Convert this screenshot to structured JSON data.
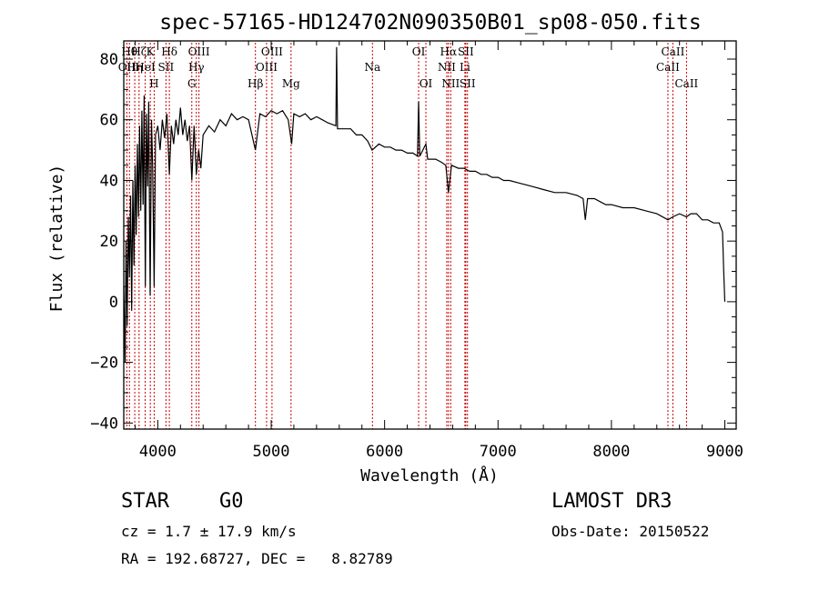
{
  "chart_data": {
    "type": "line",
    "title": "spec-57165-HD124702N090350B01_sp08-050.fits",
    "xlabel": "Wavelength (Å)",
    "ylabel": "Flux (relative)",
    "xlim": [
      3700,
      9100
    ],
    "ylim": [
      -42,
      86
    ],
    "xticks": [
      4000,
      5000,
      6000,
      7000,
      8000,
      9000
    ],
    "yticks": [
      -40,
      -20,
      0,
      20,
      40,
      60,
      80
    ],
    "xtick_labels": [
      "4000",
      "5000",
      "6000",
      "7000",
      "8000",
      "9000"
    ],
    "ytick_labels": [
      "−40",
      "−20",
      "0",
      "20",
      "40",
      "60",
      "80"
    ],
    "series": [
      {
        "name": "spectrum",
        "points": [
          [
            3700,
            5
          ],
          [
            3712,
            -20
          ],
          [
            3720,
            20
          ],
          [
            3730,
            -8
          ],
          [
            3740,
            28
          ],
          [
            3750,
            8
          ],
          [
            3760,
            35
          ],
          [
            3770,
            -3
          ],
          [
            3780,
            40
          ],
          [
            3790,
            12
          ],
          [
            3800,
            45
          ],
          [
            3810,
            22
          ],
          [
            3820,
            52
          ],
          [
            3830,
            28
          ],
          [
            3840,
            58
          ],
          [
            3850,
            30
          ],
          [
            3860,
            63
          ],
          [
            3870,
            32
          ],
          [
            3880,
            68
          ],
          [
            3890,
            5
          ],
          [
            3900,
            62
          ],
          [
            3910,
            38
          ],
          [
            3920,
            66
          ],
          [
            3933,
            2
          ],
          [
            3945,
            60
          ],
          [
            3955,
            44
          ],
          [
            3968,
            5
          ],
          [
            3980,
            55
          ],
          [
            4000,
            58
          ],
          [
            4020,
            50
          ],
          [
            4040,
            60
          ],
          [
            4060,
            54
          ],
          [
            4080,
            62
          ],
          [
            4102,
            42
          ],
          [
            4120,
            58
          ],
          [
            4140,
            52
          ],
          [
            4160,
            60
          ],
          [
            4180,
            55
          ],
          [
            4200,
            64
          ],
          [
            4220,
            55
          ],
          [
            4240,
            60
          ],
          [
            4260,
            53
          ],
          [
            4280,
            58
          ],
          [
            4300,
            40
          ],
          [
            4320,
            58
          ],
          [
            4340,
            42
          ],
          [
            4360,
            50
          ],
          [
            4380,
            44
          ],
          [
            4400,
            55
          ],
          [
            4450,
            58
          ],
          [
            4500,
            56
          ],
          [
            4550,
            60
          ],
          [
            4600,
            58
          ],
          [
            4650,
            62
          ],
          [
            4700,
            60
          ],
          [
            4750,
            61
          ],
          [
            4800,
            60
          ],
          [
            4861,
            50
          ],
          [
            4900,
            62
          ],
          [
            4950,
            61
          ],
          [
            5000,
            63
          ],
          [
            5050,
            62
          ],
          [
            5100,
            63
          ],
          [
            5150,
            60
          ],
          [
            5180,
            52
          ],
          [
            5200,
            62
          ],
          [
            5250,
            61
          ],
          [
            5300,
            62
          ],
          [
            5350,
            60
          ],
          [
            5400,
            61
          ],
          [
            5450,
            60
          ],
          [
            5500,
            59
          ],
          [
            5570,
            58
          ],
          [
            5577,
            84
          ],
          [
            5585,
            57
          ],
          [
            5650,
            57
          ],
          [
            5700,
            57
          ],
          [
            5750,
            55
          ],
          [
            5800,
            55
          ],
          [
            5850,
            53
          ],
          [
            5890,
            50
          ],
          [
            5950,
            52
          ],
          [
            6000,
            51
          ],
          [
            6050,
            51
          ],
          [
            6100,
            50
          ],
          [
            6150,
            50
          ],
          [
            6200,
            49
          ],
          [
            6250,
            49
          ],
          [
            6290,
            48
          ],
          [
            6300,
            66
          ],
          [
            6310,
            48
          ],
          [
            6364,
            52
          ],
          [
            6380,
            47
          ],
          [
            6450,
            47
          ],
          [
            6500,
            46
          ],
          [
            6540,
            45
          ],
          [
            6563,
            36
          ],
          [
            6590,
            45
          ],
          [
            6650,
            44
          ],
          [
            6700,
            44
          ],
          [
            6750,
            43
          ],
          [
            6800,
            43
          ],
          [
            6850,
            42
          ],
          [
            6900,
            42
          ],
          [
            6950,
            41
          ],
          [
            7000,
            41
          ],
          [
            7050,
            40
          ],
          [
            7100,
            40
          ],
          [
            7200,
            39
          ],
          [
            7300,
            38
          ],
          [
            7400,
            37
          ],
          [
            7500,
            36
          ],
          [
            7600,
            36
          ],
          [
            7700,
            35
          ],
          [
            7750,
            34
          ],
          [
            7770,
            27
          ],
          [
            7790,
            34
          ],
          [
            7850,
            34
          ],
          [
            7900,
            33
          ],
          [
            7950,
            32
          ],
          [
            8000,
            32
          ],
          [
            8100,
            31
          ],
          [
            8200,
            31
          ],
          [
            8300,
            30
          ],
          [
            8400,
            29
          ],
          [
            8498,
            27
          ],
          [
            8542,
            28
          ],
          [
            8600,
            29
          ],
          [
            8662,
            28
          ],
          [
            8700,
            29
          ],
          [
            8750,
            29
          ],
          [
            8800,
            27
          ],
          [
            8850,
            27
          ],
          [
            8900,
            26
          ],
          [
            8950,
            26
          ],
          [
            8980,
            23
          ],
          [
            8990,
            10
          ],
          [
            9000,
            0
          ]
        ]
      }
    ],
    "line_markers": [
      {
        "wl": 3727,
        "label": "OII",
        "row": 1
      },
      {
        "wl": 3750,
        "label": "Hθ",
        "row": 0
      },
      {
        "wl": 3797,
        "label": "Hη",
        "row": 1
      },
      {
        "wl": 3835,
        "label": "Hζ",
        "row": 0
      },
      {
        "wl": 3889,
        "label": "HeI",
        "row": 1
      },
      {
        "wl": 3934,
        "label": "K",
        "row": 0
      },
      {
        "wl": 3968,
        "label": "H",
        "row": 2
      },
      {
        "wl": 4072,
        "label": "SII",
        "row": 1
      },
      {
        "wl": 4102,
        "label": "Hδ",
        "row": 0
      },
      {
        "wl": 4300,
        "label": "G",
        "row": 2
      },
      {
        "wl": 4340,
        "label": "Hγ",
        "row": 1
      },
      {
        "wl": 4363,
        "label": "OIII",
        "row": 0
      },
      {
        "wl": 4861,
        "label": "Hβ",
        "row": 2
      },
      {
        "wl": 4959,
        "label": "OIII",
        "row": 1
      },
      {
        "wl": 5007,
        "label": "OIII",
        "row": 0
      },
      {
        "wl": 5175,
        "label": "Mg",
        "row": 2
      },
      {
        "wl": 5893,
        "label": "Na",
        "row": 1
      },
      {
        "wl": 6300,
        "label": "OI",
        "row": 0
      },
      {
        "wl": 6364,
        "label": "OI",
        "row": 2
      },
      {
        "wl": 6548,
        "label": "NII",
        "row": 1
      },
      {
        "wl": 6563,
        "label": "Hα",
        "row": 0
      },
      {
        "wl": 6583,
        "label": "NII",
        "row": 2
      },
      {
        "wl": 6708,
        "label": "Li",
        "row": 1
      },
      {
        "wl": 6716,
        "label": "SII",
        "row": 0
      },
      {
        "wl": 6731,
        "label": "SII",
        "row": 2
      },
      {
        "wl": 8498,
        "label": "CaII",
        "row": 1
      },
      {
        "wl": 8542,
        "label": "CaII",
        "row": 0
      },
      {
        "wl": 8662,
        "label": "CaII",
        "row": 2
      }
    ]
  },
  "info": {
    "object_class": "STAR",
    "subclass": "G0",
    "survey": "LAMOST DR3",
    "cz": "cz = 1.7 ± 17.9 km/s",
    "obs_date": "Obs-Date: 20150522",
    "coords": "RA = 192.68727, DEC =   8.82789"
  },
  "colors": {
    "line": "#000000",
    "marker": "#cc0000",
    "background": "#ffffff"
  }
}
